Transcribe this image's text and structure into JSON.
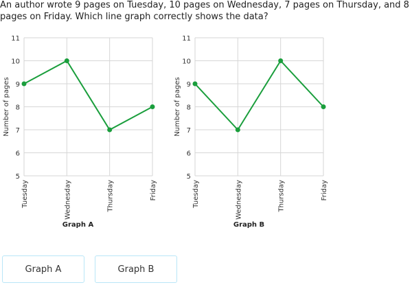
{
  "question": {
    "text": "An author wrote 9 pages on Tuesday, 10 pages on Wednesday, 7 pages on Thursday, and 8 pages on Friday. Which line graph correctly shows the data?"
  },
  "choices": [
    {
      "label": "Graph A"
    },
    {
      "label": "Graph B"
    }
  ],
  "colors": {
    "line": "#1a9e3c",
    "grid": "#d6d6d6",
    "button_border": "#b8e6f7"
  },
  "chart_data": [
    {
      "type": "line",
      "title": "Graph A",
      "xlabel": "",
      "ylabel": "Number of pages",
      "categories": [
        "Tuesday",
        "Wednesday",
        "Thursday",
        "Friday"
      ],
      "values": [
        9,
        10,
        7,
        8
      ],
      "yticks": [
        5,
        6,
        7,
        8,
        9,
        10,
        11
      ],
      "ylim": [
        5,
        11
      ],
      "grid": true,
      "legend": "none"
    },
    {
      "type": "line",
      "title": "Graph B",
      "xlabel": "",
      "ylabel": "Number of pages",
      "categories": [
        "Tuesday",
        "Wednesday",
        "Thursday",
        "Friday"
      ],
      "values": [
        9,
        7,
        10,
        8
      ],
      "yticks": [
        5,
        6,
        7,
        8,
        9,
        10,
        11
      ],
      "ylim": [
        5,
        11
      ],
      "grid": true,
      "legend": "none"
    }
  ]
}
